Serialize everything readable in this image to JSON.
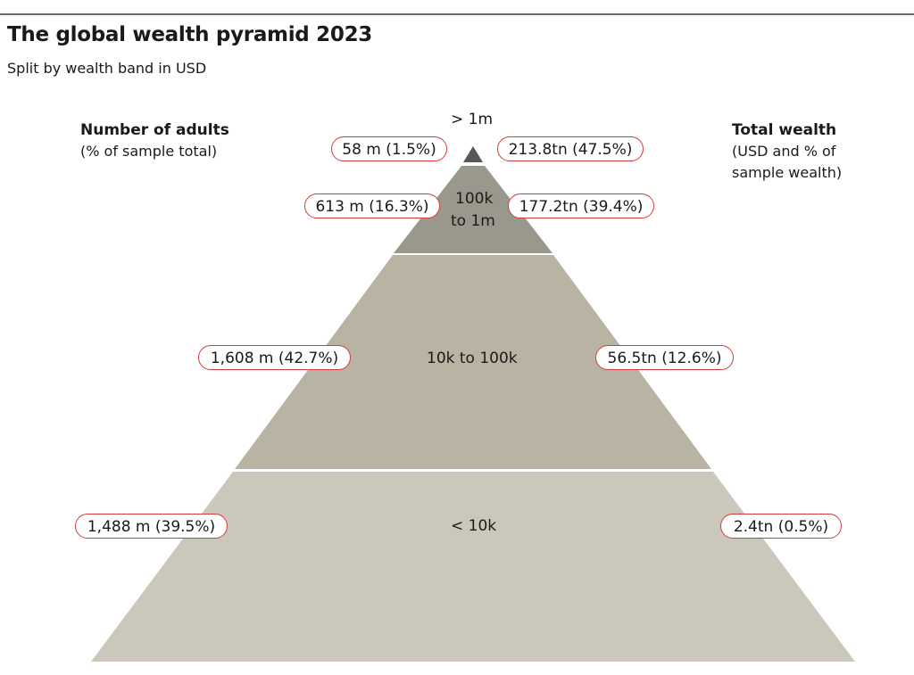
{
  "title": "The global wealth pyramid 2023",
  "subtitle": "Split by wealth band in USD",
  "left_heading": {
    "title": "Number of adults",
    "subtitle": "(% of sample total)"
  },
  "right_heading": {
    "title": "Total wealth",
    "subtitle_line1": "(USD and % of",
    "subtitle_line2": "sample wealth)"
  },
  "colors": {
    "band_top": "#58585a",
    "band_2": "#9a978d",
    "band_3": "#b8b3a3",
    "band_4": "#cbc8bb",
    "pill_border": "#d33c3c"
  },
  "bands": [
    {
      "label": "> 1m",
      "adults": "58 m (1.5%)",
      "wealth": "213.8tn (47.5%)"
    },
    {
      "label_line1": "100k",
      "label_line2": "to 1m",
      "adults": "613 m (16.3%)",
      "wealth": "177.2tn (39.4%)"
    },
    {
      "label": "10k to 100k",
      "adults": "1,608 m (42.7%)",
      "wealth": "56.5tn (12.6%)"
    },
    {
      "label": "< 10k",
      "adults": "1,488 m (39.5%)",
      "wealth": "2.4tn (0.5%)"
    }
  ]
}
